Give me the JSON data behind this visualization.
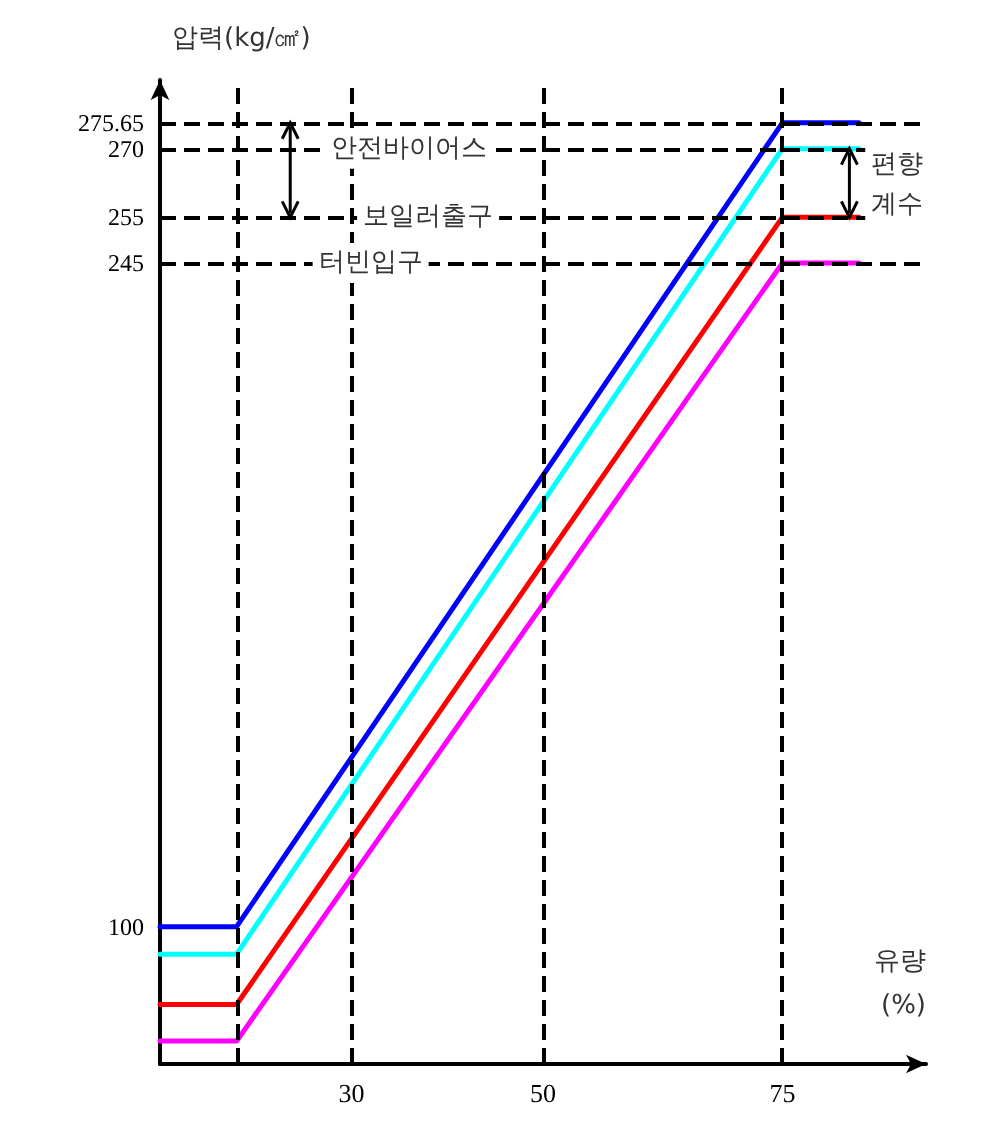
{
  "chart_data": {
    "type": "line",
    "xlabel": "유량\n(%)",
    "ylabel": "압력(kg/㎠)",
    "series": [
      {
        "color": "#0000ff",
        "x": [
          10,
          18,
          75,
          83
        ],
        "values": [
          100,
          100,
          275.65,
          275.65
        ]
      },
      {
        "color": "#00ffff",
        "x": [
          10,
          18,
          75,
          83
        ],
        "values": [
          94,
          94,
          270,
          270
        ]
      },
      {
        "color": "#ff0000",
        "x": [
          10,
          18,
          75,
          83
        ],
        "values": [
          83,
          83,
          255,
          255
        ]
      },
      {
        "color": "#ff00ff",
        "x": [
          10,
          18,
          75,
          83
        ],
        "values": [
          75,
          75,
          245,
          245
        ]
      }
    ],
    "xlim": [
      10,
      90
    ],
    "xticks": [
      30,
      50,
      75
    ],
    "ylim": [
      70,
      285
    ],
    "yticks": [
      100,
      245,
      255,
      270,
      275.65
    ],
    "marker": "none",
    "line_style": "solid",
    "ref_lines": [
      {
        "axis": "y",
        "value": 275.65,
        "line_style": "dashed"
      },
      {
        "axis": "y",
        "value": 270,
        "line_style": "dashed"
      },
      {
        "axis": "y",
        "value": 255,
        "line_style": "dashed"
      },
      {
        "axis": "y",
        "value": 245,
        "line_style": "dashed"
      },
      {
        "axis": "x",
        "value": 18,
        "line_style": "dashed"
      },
      {
        "axis": "x",
        "value": 30,
        "line_style": "dashed"
      },
      {
        "axis": "x",
        "value": 50,
        "line_style": "dashed"
      },
      {
        "axis": "x",
        "value": 75,
        "line_style": "dashed"
      }
    ],
    "annotations": [
      {
        "text": "안전바이어스",
        "x": 36,
        "y": 270
      },
      {
        "text": "보일러출구",
        "x": 38,
        "y": 255
      },
      {
        "text": "터빈입구",
        "x": 32,
        "y": 245
      },
      {
        "text": "편향\n계수",
        "x": 87,
        "y": 262
      }
    ]
  }
}
